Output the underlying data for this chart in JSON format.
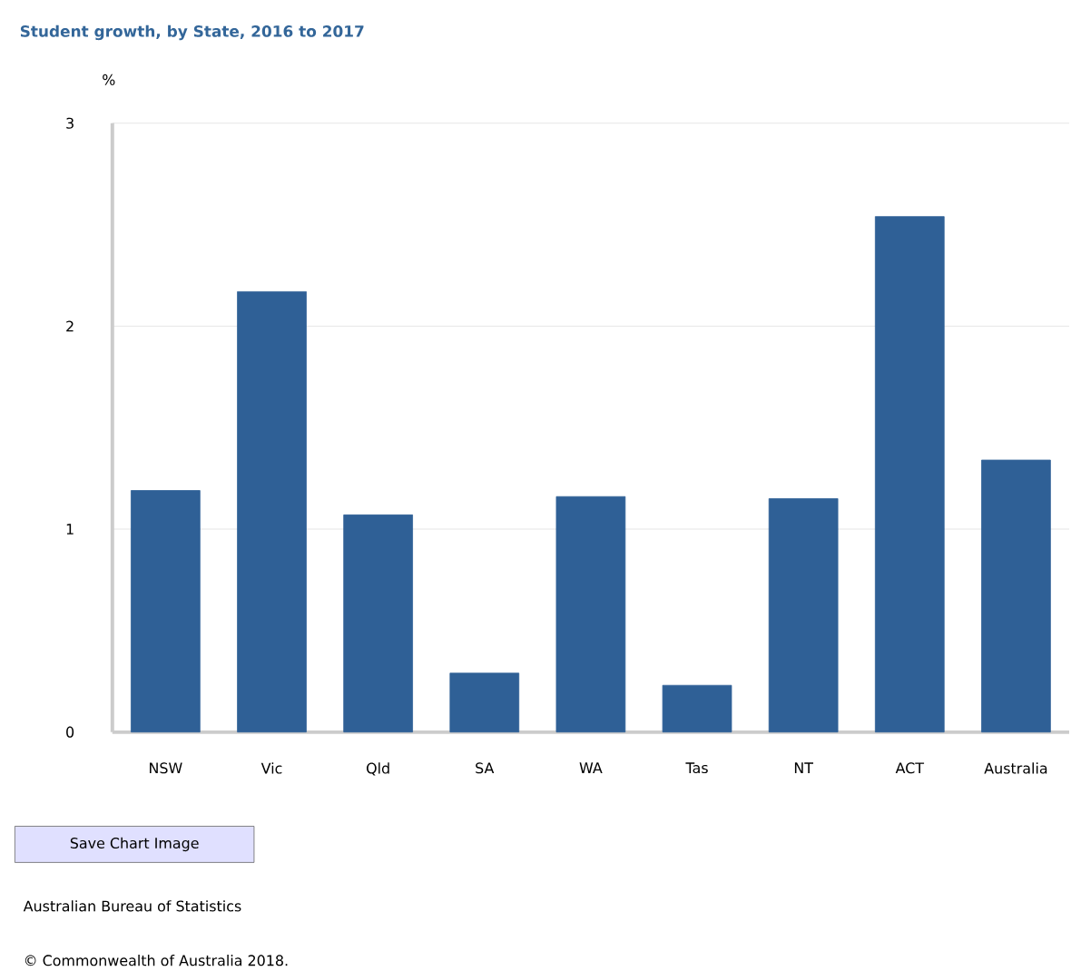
{
  "chart_data": {
    "type": "bar",
    "title": "Student growth, by State, 2016 to 2017",
    "ylabel": "%",
    "categories": [
      "NSW",
      "Vic",
      "Qld",
      "SA",
      "WA",
      "Tas",
      "NT",
      "ACT",
      "Australia"
    ],
    "values": [
      1.19,
      2.17,
      1.07,
      0.29,
      1.16,
      0.23,
      1.15,
      2.54,
      1.34
    ],
    "color": "#2f6096",
    "ylim": [
      0,
      3
    ],
    "yticks": [
      0,
      1,
      2,
      3
    ],
    "grid": "y",
    "annotations": [
      "Save Chart Image",
      "Australian Bureau of Statistics",
      "© Commonwealth of Australia 2018."
    ]
  }
}
